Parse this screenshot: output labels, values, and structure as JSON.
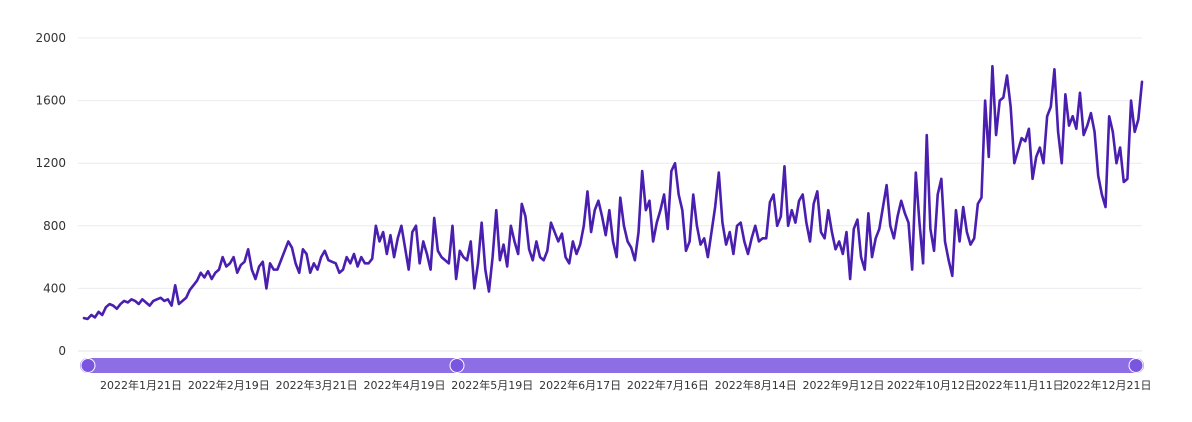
{
  "chart_data": {
    "type": "line",
    "title": "",
    "xlabel": "",
    "ylabel": "",
    "ylim": [
      0,
      2000
    ],
    "yticks": [
      0,
      400,
      800,
      1200,
      1600,
      2000
    ],
    "grid": true,
    "x_tick_labels": [
      "2022年1月21日",
      "2022年2月19日",
      "2022年3月21日",
      "2022年4月19日",
      "2022年5月19日",
      "2022年6月17日",
      "2022年7月16日",
      "2022年8月14日",
      "2022年9月12日",
      "2022年10月12日",
      "2022年11月11日",
      "2022年12月21日"
    ],
    "line_color": "#4a1fb0",
    "slider_color": "#7a55e0",
    "series": [
      {
        "values": [
          210,
          205,
          230,
          215,
          250,
          230,
          280,
          300,
          290,
          270,
          300,
          320,
          310,
          330,
          320,
          300,
          330,
          310,
          290,
          320,
          330,
          340,
          320,
          330,
          290,
          420,
          300,
          320,
          340,
          390,
          420,
          450,
          500,
          470,
          510,
          460,
          500,
          520,
          600,
          540,
          560,
          600,
          500,
          550,
          570,
          650,
          520,
          460,
          540,
          570,
          400,
          560,
          520,
          520,
          580,
          640,
          700,
          660,
          560,
          500,
          650,
          620,
          500,
          560,
          520,
          600,
          640,
          580,
          570,
          560,
          500,
          520,
          600,
          560,
          620,
          540,
          600,
          560,
          560,
          590,
          800,
          700,
          760,
          620,
          740,
          600,
          720,
          800,
          660,
          520,
          760,
          800,
          560,
          700,
          620,
          520,
          850,
          640,
          600,
          580,
          560,
          800,
          460,
          640,
          600,
          580,
          700,
          400,
          560,
          820,
          520,
          380,
          600,
          900,
          580,
          680,
          540,
          800,
          700,
          620,
          940,
          860,
          650,
          580,
          700,
          600,
          580,
          640,
          820,
          760,
          700,
          750,
          600,
          560,
          700,
          620,
          680,
          800,
          1020,
          760,
          900,
          960,
          860,
          740,
          900,
          700,
          600,
          980,
          800,
          700,
          660,
          580,
          760,
          1150,
          900,
          960,
          700,
          820,
          900,
          1000,
          780,
          1150,
          1200,
          1000,
          900,
          640,
          700,
          1000,
          800,
          680,
          720,
          600,
          760,
          920,
          1140,
          820,
          680,
          760,
          620,
          800,
          820,
          700,
          620,
          720,
          800,
          700,
          720,
          720,
          950,
          1000,
          800,
          860,
          1180,
          800,
          900,
          820,
          960,
          1000,
          820,
          700,
          940,
          1020,
          760,
          720,
          900,
          760,
          650,
          700,
          620,
          760,
          460,
          780,
          840,
          600,
          520,
          880,
          600,
          720,
          780,
          920,
          1060,
          800,
          720,
          860,
          960,
          880,
          820,
          520,
          1140,
          820,
          560,
          1380,
          780,
          640,
          1000,
          1100,
          700,
          580,
          480,
          900,
          700,
          920,
          760,
          680,
          720,
          940,
          980,
          1600,
          1240,
          1820,
          1380,
          1600,
          1620,
          1760,
          1560,
          1200,
          1280,
          1360,
          1340,
          1420,
          1100,
          1240,
          1300,
          1200,
          1500,
          1560,
          1800,
          1400,
          1200,
          1640,
          1440,
          1500,
          1420,
          1650,
          1380,
          1440,
          1520,
          1400,
          1120,
          1000,
          920,
          1500,
          1400,
          1200,
          1300,
          1080,
          1100,
          1600,
          1400,
          1480,
          1720
        ]
      }
    ]
  }
}
